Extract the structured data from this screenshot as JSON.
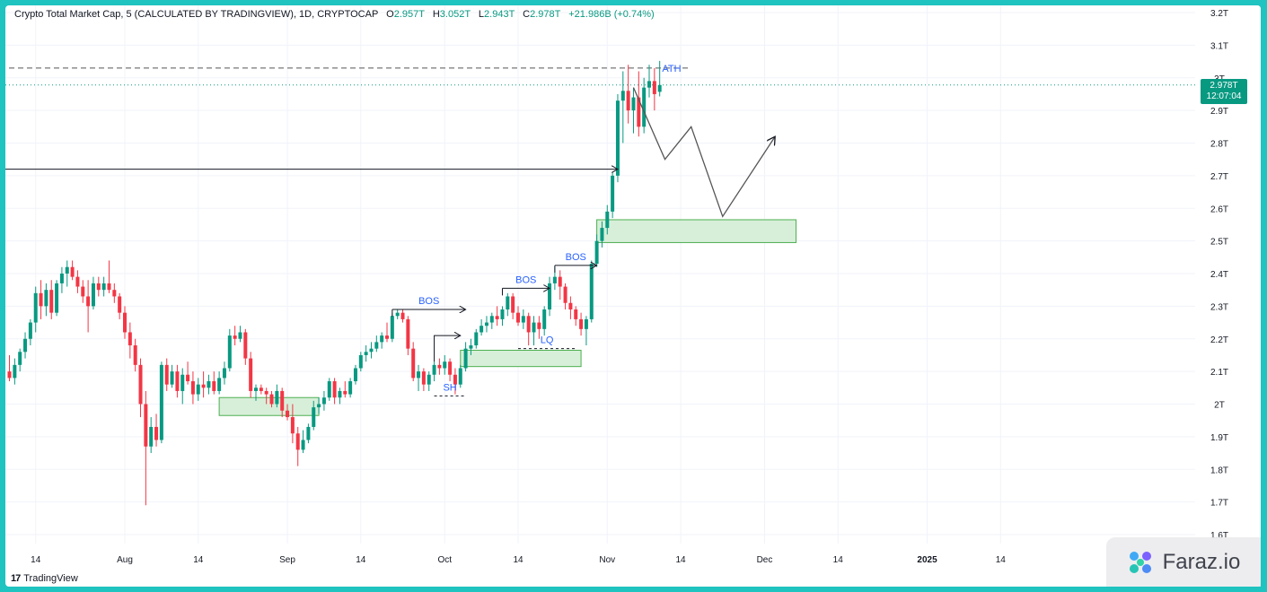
{
  "header": {
    "title": "Crypto Total Market Cap, 5 (CALCULATED BY TRADINGVIEW), 1D, CRYPTOCAP",
    "open_label": "O",
    "open": "2.957T",
    "high_label": "H",
    "high": "3.052T",
    "low_label": "L",
    "low": "2.943T",
    "close_label": "C",
    "close": "2.978T",
    "change": "+21.986B (+0.74%)"
  },
  "price_tag": {
    "price": "2.978T",
    "countdown": "12:07:04"
  },
  "footer": {
    "brand": "TradingView"
  },
  "watermark": {
    "text": "Faraz.io"
  },
  "colors": {
    "up": "#089981",
    "down": "#f23645",
    "annotation_text": "#2962ff",
    "zone_fill": "#d7efd9",
    "zone_border": "#4caf50"
  },
  "chart_data": {
    "type": "candlestick",
    "y_unit": "T",
    "ylim": [
      1.6,
      3.2
    ],
    "y_ticks": [
      "1.6T",
      "1.7T",
      "1.8T",
      "1.9T",
      "2T",
      "2.1T",
      "2.2T",
      "2.3T",
      "2.4T",
      "2.5T",
      "2.6T",
      "2.7T",
      "2.8T",
      "2.9T",
      "3T",
      "3.1T",
      "3.2T"
    ],
    "y_tick_values": [
      1.6,
      1.7,
      1.8,
      1.9,
      2.0,
      2.1,
      2.2,
      2.3,
      2.4,
      2.5,
      2.6,
      2.7,
      2.8,
      2.9,
      3.0,
      3.1,
      3.2
    ],
    "x_ticks": [
      "14",
      "Aug",
      "14",
      "Sep",
      "14",
      "Oct",
      "14",
      "Nov",
      "14",
      "Dec",
      "14",
      "2025",
      "14"
    ],
    "x_tick_days": [
      -17,
      0,
      14,
      31,
      45,
      61,
      75,
      92,
      106,
      122,
      136,
      153,
      167
    ],
    "x_axis_origin": "2024-08-01",
    "grid": true,
    "candles": [
      [
        -22,
        2.1,
        2.15,
        2.07,
        2.08
      ],
      [
        -21,
        2.08,
        2.14,
        2.06,
        2.12
      ],
      [
        -20,
        2.12,
        2.17,
        2.1,
        2.16
      ],
      [
        -19,
        2.16,
        2.22,
        2.14,
        2.2
      ],
      [
        -18,
        2.2,
        2.26,
        2.18,
        2.25
      ],
      [
        -17,
        2.25,
        2.36,
        2.22,
        2.34
      ],
      [
        -16,
        2.34,
        2.38,
        2.26,
        2.3
      ],
      [
        -15,
        2.3,
        2.37,
        2.27,
        2.35
      ],
      [
        -14,
        2.35,
        2.38,
        2.26,
        2.28
      ],
      [
        -13,
        2.28,
        2.38,
        2.27,
        2.37
      ],
      [
        -12,
        2.37,
        2.42,
        2.34,
        2.4
      ],
      [
        -11,
        2.4,
        2.44,
        2.36,
        2.42
      ],
      [
        -10,
        2.42,
        2.44,
        2.38,
        2.39
      ],
      [
        -9,
        2.39,
        2.41,
        2.34,
        2.36
      ],
      [
        -8,
        2.36,
        2.38,
        2.31,
        2.33
      ],
      [
        -7,
        2.33,
        2.38,
        2.22,
        2.3
      ],
      [
        -6,
        2.3,
        2.39,
        2.29,
        2.37
      ],
      [
        -5,
        2.37,
        2.39,
        2.33,
        2.35
      ],
      [
        -4,
        2.35,
        2.39,
        2.33,
        2.37
      ],
      [
        -3,
        2.37,
        2.44,
        2.34,
        2.35
      ],
      [
        -2,
        2.35,
        2.37,
        2.31,
        2.33
      ],
      [
        -1,
        2.33,
        2.34,
        2.26,
        2.28
      ],
      [
        0,
        2.28,
        2.3,
        2.2,
        2.22
      ],
      [
        1,
        2.22,
        2.25,
        2.14,
        2.18
      ],
      [
        2,
        2.18,
        2.2,
        2.1,
        2.12
      ],
      [
        3,
        2.12,
        2.14,
        1.96,
        2.0
      ],
      [
        4,
        2.0,
        2.04,
        1.69,
        1.87
      ],
      [
        5,
        1.87,
        1.96,
        1.85,
        1.93
      ],
      [
        6,
        1.93,
        1.97,
        1.87,
        1.89
      ],
      [
        7,
        1.89,
        2.13,
        1.88,
        2.12
      ],
      [
        8,
        2.12,
        2.14,
        2.04,
        2.06
      ],
      [
        9,
        2.06,
        2.12,
        2.05,
        2.1
      ],
      [
        10,
        2.1,
        2.12,
        2.02,
        2.04
      ],
      [
        11,
        2.04,
        2.11,
        2.0,
        2.09
      ],
      [
        12,
        2.09,
        2.13,
        2.06,
        2.07
      ],
      [
        13,
        2.07,
        2.1,
        2.0,
        2.03
      ],
      [
        14,
        2.03,
        2.08,
        2.01,
        2.06
      ],
      [
        15,
        2.06,
        2.1,
        2.02,
        2.05
      ],
      [
        16,
        2.05,
        2.09,
        2.03,
        2.07
      ],
      [
        17,
        2.07,
        2.1,
        2.03,
        2.04
      ],
      [
        18,
        2.04,
        2.1,
        2.03,
        2.08
      ],
      [
        19,
        2.08,
        2.13,
        2.06,
        2.11
      ],
      [
        20,
        2.11,
        2.23,
        2.1,
        2.21
      ],
      [
        21,
        2.21,
        2.24,
        2.18,
        2.2
      ],
      [
        22,
        2.2,
        2.24,
        2.19,
        2.22
      ],
      [
        23,
        2.22,
        2.23,
        2.12,
        2.14
      ],
      [
        24,
        2.14,
        2.16,
        2.02,
        2.04
      ],
      [
        25,
        2.04,
        2.06,
        2.01,
        2.05
      ],
      [
        26,
        2.05,
        2.06,
        2.03,
        2.04
      ],
      [
        27,
        2.04,
        2.05,
        2.0,
        2.03
      ],
      [
        28,
        2.03,
        2.04,
        1.99,
        2.0
      ],
      [
        29,
        2.0,
        2.06,
        1.99,
        2.04
      ],
      [
        30,
        2.04,
        2.05,
        1.96,
        1.98
      ],
      [
        31,
        1.98,
        2.0,
        1.95,
        1.96
      ],
      [
        32,
        1.96,
        2.0,
        1.88,
        1.91
      ],
      [
        33,
        1.91,
        1.93,
        1.81,
        1.86
      ],
      [
        34,
        1.86,
        1.92,
        1.85,
        1.89
      ],
      [
        35,
        1.89,
        1.94,
        1.88,
        1.93
      ],
      [
        36,
        1.93,
        2.01,
        1.92,
        1.99
      ],
      [
        37,
        1.99,
        2.02,
        1.97,
        2.0
      ],
      [
        38,
        2.0,
        2.04,
        1.98,
        2.02
      ],
      [
        39,
        2.02,
        2.08,
        2.01,
        2.07
      ],
      [
        40,
        2.07,
        2.08,
        2.0,
        2.02
      ],
      [
        41,
        2.02,
        2.05,
        2.0,
        2.04
      ],
      [
        42,
        2.04,
        2.07,
        2.02,
        2.03
      ],
      [
        43,
        2.03,
        2.08,
        2.02,
        2.07
      ],
      [
        44,
        2.07,
        2.12,
        2.06,
        2.11
      ],
      [
        45,
        2.11,
        2.16,
        2.1,
        2.15
      ],
      [
        46,
        2.15,
        2.18,
        2.13,
        2.16
      ],
      [
        47,
        2.16,
        2.19,
        2.14,
        2.17
      ],
      [
        48,
        2.17,
        2.21,
        2.16,
        2.19
      ],
      [
        49,
        2.19,
        2.22,
        2.17,
        2.21
      ],
      [
        50,
        2.21,
        2.25,
        2.19,
        2.2
      ],
      [
        51,
        2.2,
        2.28,
        2.19,
        2.27
      ],
      [
        52,
        2.27,
        2.29,
        2.26,
        2.28
      ],
      [
        53,
        2.28,
        2.29,
        2.25,
        2.26
      ],
      [
        54,
        2.26,
        2.27,
        2.15,
        2.17
      ],
      [
        55,
        2.17,
        2.19,
        2.07,
        2.08
      ],
      [
        56,
        2.08,
        2.12,
        2.04,
        2.1
      ],
      [
        57,
        2.1,
        2.11,
        2.04,
        2.06
      ],
      [
        58,
        2.06,
        2.1,
        2.04,
        2.09
      ],
      [
        59,
        2.09,
        2.13,
        2.07,
        2.12
      ],
      [
        60,
        2.12,
        2.14,
        2.09,
        2.11
      ],
      [
        61,
        2.11,
        2.15,
        2.09,
        2.13
      ],
      [
        62,
        2.13,
        2.14,
        2.07,
        2.09
      ],
      [
        63,
        2.09,
        2.11,
        2.03,
        2.06
      ],
      [
        64,
        2.06,
        2.12,
        2.05,
        2.11
      ],
      [
        65,
        2.11,
        2.19,
        2.1,
        2.17
      ],
      [
        66,
        2.17,
        2.2,
        2.15,
        2.18
      ],
      [
        67,
        2.18,
        2.23,
        2.17,
        2.22
      ],
      [
        68,
        2.22,
        2.26,
        2.21,
        2.24
      ],
      [
        69,
        2.24,
        2.27,
        2.22,
        2.25
      ],
      [
        70,
        2.25,
        2.28,
        2.23,
        2.27
      ],
      [
        71,
        2.27,
        2.3,
        2.24,
        2.26
      ],
      [
        72,
        2.26,
        2.3,
        2.24,
        2.29
      ],
      [
        73,
        2.29,
        2.34,
        2.27,
        2.33
      ],
      [
        74,
        2.33,
        2.34,
        2.26,
        2.28
      ],
      [
        75,
        2.28,
        2.3,
        2.24,
        2.25
      ],
      [
        76,
        2.25,
        2.29,
        2.23,
        2.27
      ],
      [
        77,
        2.27,
        2.28,
        2.18,
        2.22
      ],
      [
        78,
        2.22,
        2.27,
        2.18,
        2.25
      ],
      [
        79,
        2.25,
        2.27,
        2.2,
        2.23
      ],
      [
        80,
        2.23,
        2.3,
        2.21,
        2.29
      ],
      [
        81,
        2.29,
        2.39,
        2.27,
        2.37
      ],
      [
        82,
        2.37,
        2.42,
        2.35,
        2.39
      ],
      [
        83,
        2.39,
        2.41,
        2.32,
        2.36
      ],
      [
        84,
        2.36,
        2.37,
        2.29,
        2.31
      ],
      [
        85,
        2.31,
        2.33,
        2.26,
        2.29
      ],
      [
        86,
        2.29,
        2.3,
        2.24,
        2.26
      ],
      [
        87,
        2.26,
        2.28,
        2.21,
        2.23
      ],
      [
        88,
        2.23,
        2.27,
        2.18,
        2.26
      ],
      [
        89,
        2.26,
        2.44,
        2.25,
        2.43
      ],
      [
        90,
        2.43,
        2.52,
        2.42,
        2.5
      ],
      [
        91,
        2.5,
        2.56,
        2.48,
        2.54
      ],
      [
        92,
        2.54,
        2.61,
        2.52,
        2.59
      ],
      [
        93,
        2.59,
        2.71,
        2.57,
        2.7
      ],
      [
        94,
        2.7,
        2.95,
        2.68,
        2.93
      ],
      [
        95,
        2.93,
        3.02,
        2.8,
        2.96
      ],
      [
        96,
        2.96,
        3.04,
        2.86,
        2.9
      ],
      [
        97,
        2.9,
        2.97,
        2.83,
        2.94
      ],
      [
        98,
        2.94,
        3.02,
        2.82,
        2.85
      ],
      [
        99,
        2.85,
        3.0,
        2.83,
        2.97
      ],
      [
        100,
        2.97,
        3.04,
        2.94,
        2.99
      ],
      [
        101,
        2.99,
        3.03,
        2.9,
        2.95
      ],
      [
        102,
        2.957,
        3.052,
        2.943,
        2.978
      ]
    ],
    "horizontal_lines": [
      {
        "y": 3.03,
        "style": "dashed",
        "label": "ATH"
      },
      {
        "y": 2.978,
        "style": "dotted",
        "label": ""
      }
    ],
    "annotations": [
      {
        "text": "BOS",
        "arrow": {
          "x": [
            -27,
            94
          ],
          "y": 2.72
        }
      },
      {
        "text": "BOS",
        "arrow": {
          "x": [
            51,
            65
          ],
          "y": 2.29
        }
      },
      {
        "text": "BOS",
        "arrow": {
          "x": [
            72,
            81
          ],
          "y": 2.355
        }
      },
      {
        "text": "BOS",
        "arrow": {
          "x": [
            82,
            90
          ],
          "y": 2.425
        }
      },
      {
        "text": "SH",
        "dashed_line": {
          "x": [
            59,
            65
          ],
          "y": 2.025
        }
      },
      {
        "text": "LQ",
        "dashed_line": {
          "x": [
            75,
            86
          ],
          "y": 2.17
        }
      },
      {
        "text": "",
        "step_arrow": {
          "x": [
            59,
            64
          ],
          "y": [
            2.13,
            2.21
          ]
        }
      }
    ],
    "demand_zones": [
      {
        "x": [
          18,
          37
        ],
        "y": [
          1.965,
          2.02
        ]
      },
      {
        "x": [
          64,
          87
        ],
        "y": [
          2.115,
          2.165
        ]
      },
      {
        "x": [
          90,
          128
        ],
        "y": [
          2.495,
          2.565
        ]
      }
    ],
    "projection_path": {
      "x": [
        97,
        103,
        108,
        114,
        124
      ],
      "y": [
        2.97,
        2.75,
        2.85,
        2.575,
        2.82
      ]
    }
  }
}
